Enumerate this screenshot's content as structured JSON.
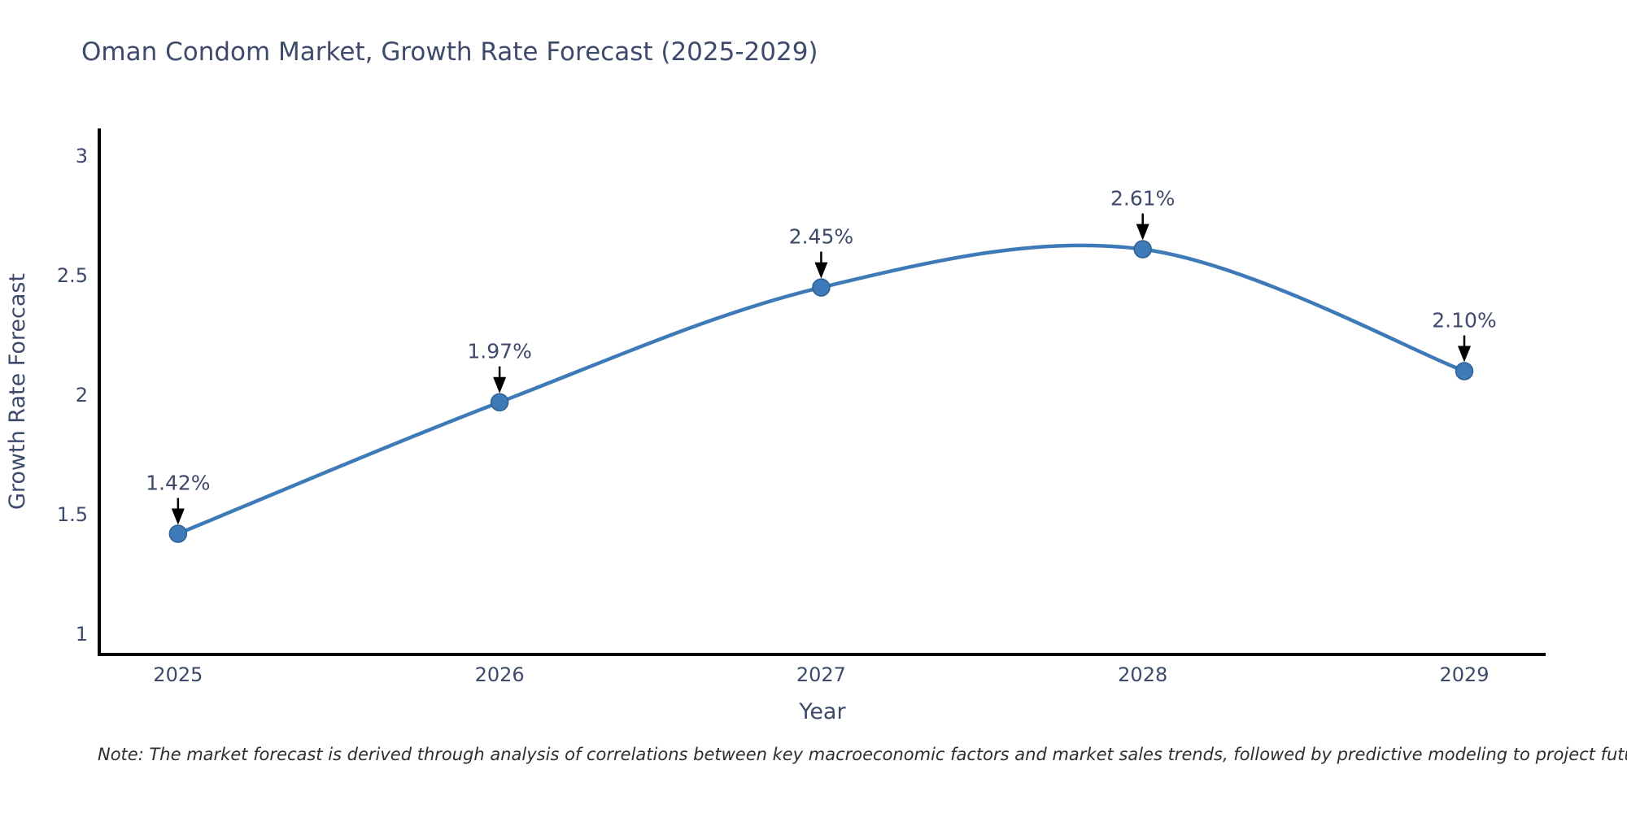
{
  "title": "Oman Condom Market, Growth Rate Forecast (2025-2029)",
  "note": "Note: The market forecast is derived through analysis of correlations between key macroeconomic factors and market sales trends, followed by predictive modeling to project future sales",
  "chart_data": {
    "type": "line",
    "title": "Oman Condom Market, Growth Rate Forecast (2025-2029)",
    "xlabel": "Year",
    "ylabel": "Growth Rate Forecast",
    "x": [
      2025,
      2026,
      2027,
      2028,
      2029
    ],
    "values": [
      1.42,
      1.97,
      2.45,
      2.61,
      2.1
    ],
    "point_labels": [
      "1.42%",
      "1.97%",
      "2.45%",
      "2.61%",
      "2.10%"
    ],
    "xticks": [
      "2025",
      "2026",
      "2027",
      "2028",
      "2029"
    ],
    "yticks": [
      "1",
      "1.5",
      "2",
      "2.5",
      "3"
    ],
    "ytick_values": [
      1,
      1.5,
      2,
      2.5,
      3
    ],
    "xlim": [
      2024.755,
      2029.253
    ],
    "ylim": [
      0.915,
      3.115
    ],
    "line_shape": "spline",
    "grid": false,
    "legend": "none",
    "annotations_arrow": "down-to-point",
    "colors": {
      "line": "#3d7ab7",
      "marker": "#3d7ab7",
      "marker_edge": "#2e6193",
      "axis": "#000000",
      "text": "#3e4a6b",
      "arrow": "#000000",
      "background": "#ffffff"
    }
  }
}
